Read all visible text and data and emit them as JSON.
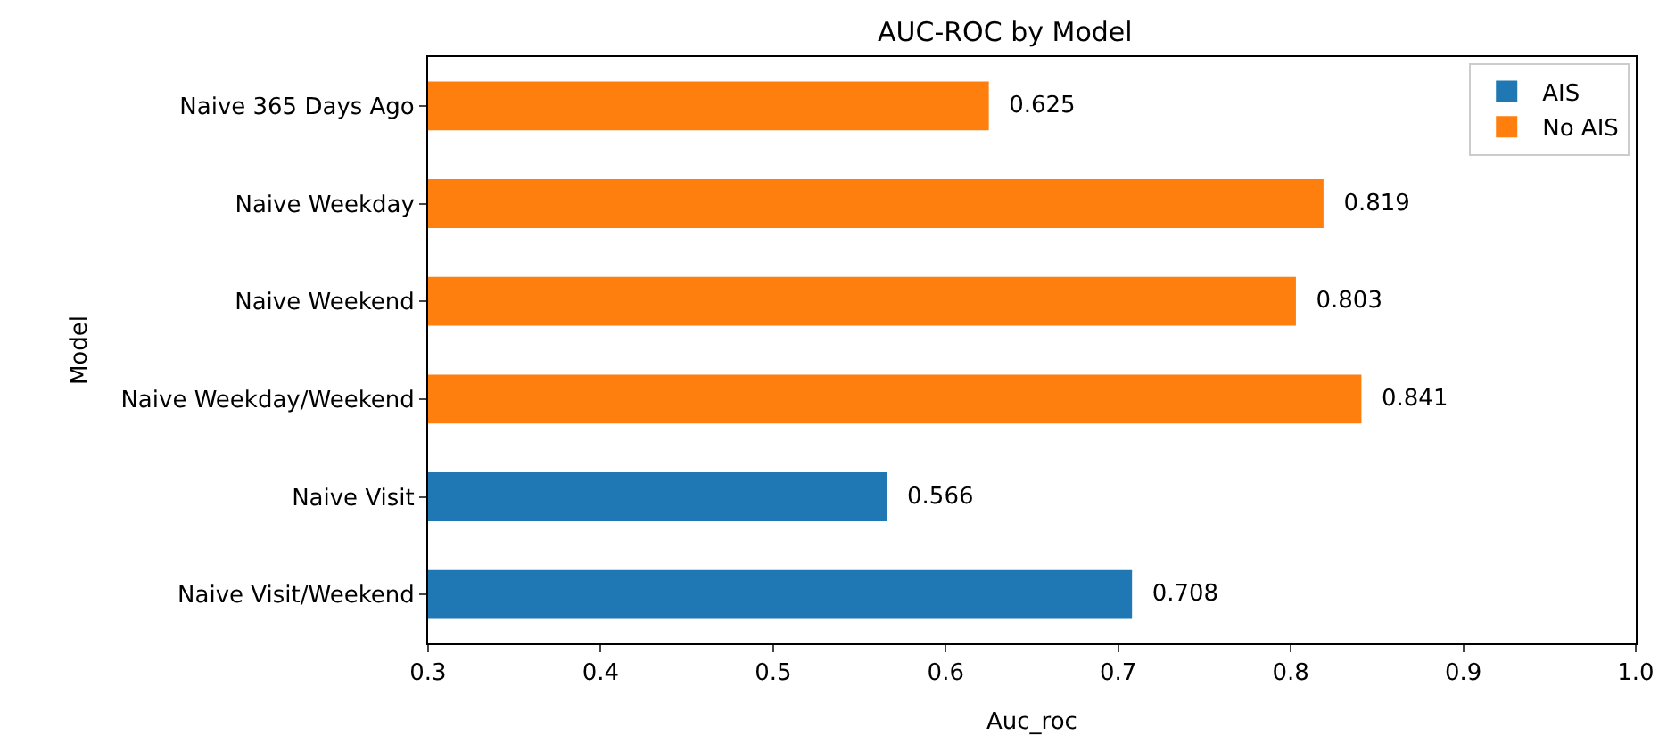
{
  "chart_data": {
    "type": "bar",
    "orientation": "horizontal",
    "title": "AUC-ROC by Model",
    "xlabel": "Auc_roc",
    "ylabel": "Model",
    "categories": [
      "Naive 365 Days Ago",
      "Naive Weekday",
      "Naive Weekend",
      "Naive Weekday/Weekend",
      "Naive Visit",
      "Naive Visit/Weekend"
    ],
    "series": [
      {
        "name": "AIS",
        "color": "#1f77b4",
        "values": [
          null,
          null,
          null,
          null,
          0.566,
          0.708
        ]
      },
      {
        "name": "No AIS",
        "color": "#ff7f0e",
        "values": [
          0.625,
          0.819,
          0.803,
          0.841,
          null,
          null
        ]
      }
    ],
    "xlim": [
      0.3,
      1.0
    ],
    "xticks": [
      0.3,
      0.4,
      0.5,
      0.6,
      0.7,
      0.8,
      0.9,
      {
        "value": 1.0,
        "label": "1.0"
      }
    ],
    "data_labels": true,
    "legend": "top right"
  }
}
